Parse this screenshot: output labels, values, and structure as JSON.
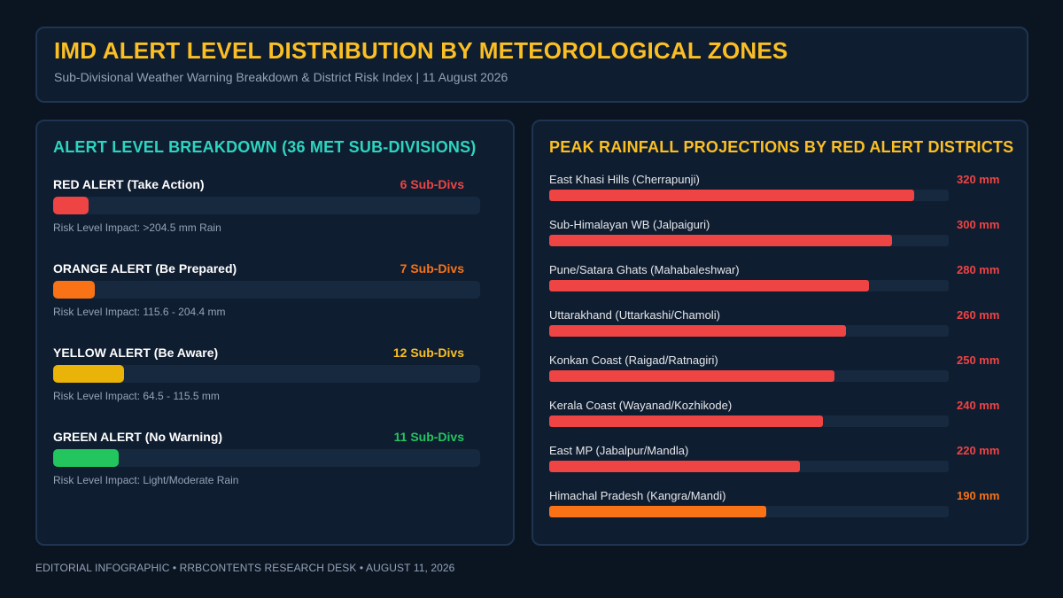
{
  "header": {
    "title": "IMD ALERT LEVEL DISTRIBUTION BY METEOROLOGICAL ZONES",
    "subtitle": "Sub-Divisional Weather Warning Breakdown & District Risk Index | 11 August 2026"
  },
  "left_panel": {
    "title": "ALERT LEVEL BREAKDOWN (36 MET SUB-DIVISIONS)"
  },
  "right_panel": {
    "title": "PEAK RAINFALL PROJECTIONS BY RED ALERT DISTRICTS"
  },
  "footer": {
    "text": "EDITORIAL INFOGRAPHIC • RRBCONTENTS RESEARCH DESK • AUGUST 11, 2026"
  },
  "chart_data": [
    {
      "type": "bar",
      "orientation": "horizontal",
      "title": "ALERT LEVEL BREAKDOWN (36 MET SUB-DIVISIONS)",
      "total": 36,
      "categories": [
        "RED ALERT (Take Action)",
        "ORANGE ALERT (Be Prepared)",
        "YELLOW ALERT (Be Aware)",
        "GREEN ALERT (No Warning)"
      ],
      "values": [
        6,
        7,
        12,
        11
      ],
      "value_labels": [
        "6 Sub-Divs",
        "7 Sub-Divs",
        "12 Sub-Divs",
        "11 Sub-Divs"
      ],
      "impacts": [
        "Risk Level Impact: >204.5 mm Rain",
        "Risk Level Impact: 115.6 - 204.4 mm",
        "Risk Level Impact: 64.5 - 115.5 mm",
        "Risk Level Impact: Light/Moderate Rain"
      ],
      "colors": [
        "#ef4444",
        "#f97316",
        "#eab308",
        "#22c55e"
      ],
      "label_colors": [
        "#ef4444",
        "#f97316",
        "#fbbf24",
        "#22c55e"
      ]
    },
    {
      "type": "bar",
      "orientation": "horizontal",
      "title": "PEAK RAINFALL PROJECTIONS BY RED ALERT DISTRICTS",
      "unit": "mm",
      "xlim": [
        0,
        350
      ],
      "categories": [
        "East Khasi Hills (Cherrapunji)",
        "Sub-Himalayan WB (Jalpaiguri)",
        "Pune/Satara Ghats (Mahabaleshwar)",
        "Uttarakhand (Uttarkashi/Chamoli)",
        "Konkan Coast (Raigad/Ratnagiri)",
        "Kerala Coast (Wayanad/Kozhikode)",
        "East MP (Jabalpur/Mandla)",
        "Himachal Pradesh (Kangra/Mandi)"
      ],
      "values": [
        320,
        300,
        280,
        260,
        250,
        240,
        220,
        190
      ],
      "value_labels": [
        "320 mm",
        "300 mm",
        "280 mm",
        "260 mm",
        "250 mm",
        "240 mm",
        "220 mm",
        "190 mm"
      ],
      "colors": [
        "#ef4444",
        "#ef4444",
        "#ef4444",
        "#ef4444",
        "#ef4444",
        "#ef4444",
        "#ef4444",
        "#f97316"
      ]
    }
  ]
}
